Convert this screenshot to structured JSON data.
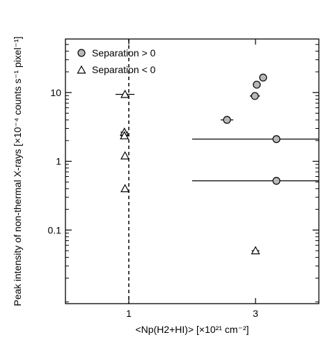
{
  "chart_data": {
    "type": "scatter",
    "xlabel": "<Np(H2+HI)> [×10²¹ cm⁻²]",
    "ylabel": "Peak intensity of non-thermal X-rays [×10⁻⁴ counts s⁻¹ pixel⁻¹]",
    "x_scale": "linear",
    "y_scale": "log",
    "xlim": [
      0,
      4
    ],
    "ylim": [
      0.0085,
      60
    ],
    "x_ticks": [
      1,
      3
    ],
    "x_tick_labels": [
      "1",
      "3"
    ],
    "y_ticks": [
      0.1,
      1,
      10
    ],
    "y_tick_labels": [
      "0.1",
      "1",
      "10"
    ],
    "reference_line_x": 1,
    "legend_placement": "top-left",
    "series": [
      {
        "name": "Separation > 0",
        "marker": "circle",
        "points": [
          {
            "x": 2.55,
            "y": 4.0,
            "xerr": [
              0.1,
              0.1
            ]
          },
          {
            "x": 2.99,
            "y": 8.9,
            "xerr": [
              0.08,
              0.08
            ]
          },
          {
            "x": 3.02,
            "y": 13.0,
            "xerr": [
              0.06,
              0.06
            ]
          },
          {
            "x": 3.12,
            "y": 16.5,
            "xerr": [
              0.06,
              0.06
            ]
          },
          {
            "x": 3.33,
            "y": 2.1,
            "xerr": [
              1.33,
              0.67
            ]
          },
          {
            "x": 3.33,
            "y": 0.52,
            "xerr": [
              1.33,
              0.67
            ]
          }
        ]
      },
      {
        "name": "Separation < 0",
        "marker": "triangle",
        "points": [
          {
            "x": 0.94,
            "y": 9.4,
            "xerr": [
              0.15,
              0.15
            ]
          },
          {
            "x": 0.93,
            "y": 2.65,
            "xerr": [
              0.06,
              0.06
            ]
          },
          {
            "x": 0.93,
            "y": 2.35,
            "xerr": [
              0.06,
              0.06
            ]
          },
          {
            "x": 0.94,
            "y": 1.2,
            "xerr": [
              0,
              0
            ]
          },
          {
            "x": 0.94,
            "y": 0.4,
            "xerr": [
              0,
              0
            ]
          },
          {
            "x": 3.0,
            "y": 0.05,
            "xerr": [
              0.06,
              0.06
            ]
          }
        ]
      }
    ]
  }
}
